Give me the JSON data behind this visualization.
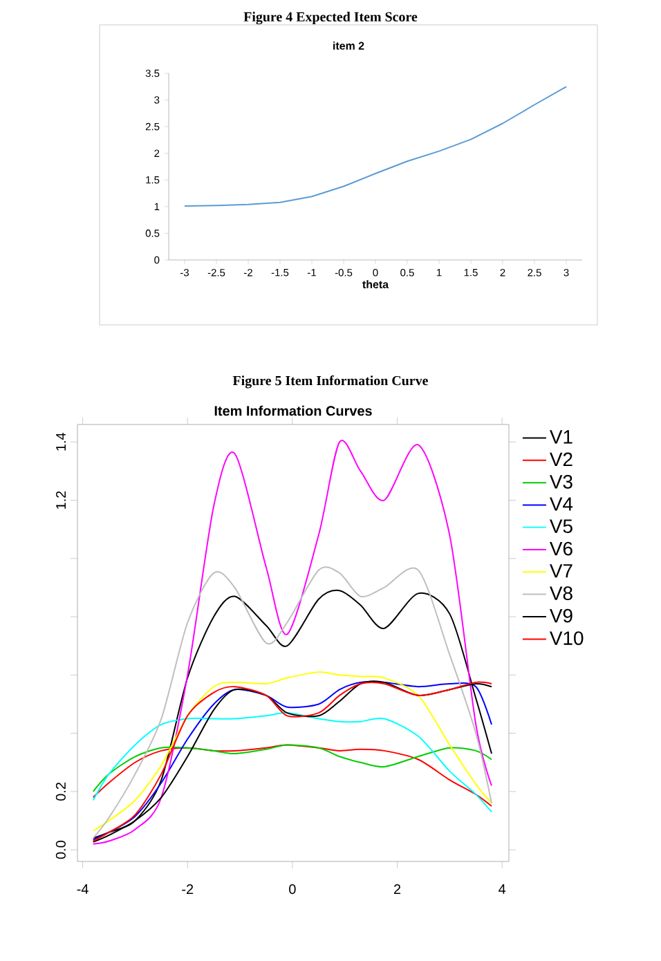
{
  "chart_data": [
    {
      "type": "line",
      "title": "Figure 4 Expected Item Score",
      "subtitle": "item 2",
      "xlabel": "theta",
      "categories": [
        "-3",
        "-2.5",
        "-2",
        "-1.5",
        "-1",
        "-0.5",
        "0",
        "0.5",
        "1",
        "1.5",
        "2",
        "2.5",
        "3"
      ],
      "values": [
        1.01,
        1.02,
        1.04,
        1.08,
        1.19,
        1.38,
        1.62,
        1.85,
        2.04,
        2.26,
        2.56,
        2.91,
        3.25
      ],
      "color": "#5b9bd5",
      "ylim": [
        0,
        3.5
      ],
      "yticks": [
        0,
        0.5,
        1,
        1.5,
        2,
        2.5,
        3,
        3.5
      ],
      "marker": "none"
    },
    {
      "type": "line",
      "title": "Figure 5 Item Information Curve",
      "subtitle": "Item Information Curves",
      "x": [
        -3.8,
        -3.5,
        -3,
        -2.5,
        -2,
        -1.5,
        -1.1,
        -0.5,
        -0.1,
        0.5,
        0.9,
        1.3,
        1.75,
        2.4,
        3,
        3.5,
        3.8
      ],
      "xlim": [
        -4.1,
        4.13
      ],
      "xticks": [
        -4,
        -2,
        0,
        2,
        4
      ],
      "ylim": [
        -0.04,
        1.46
      ],
      "yticks": [
        {
          "value": 0,
          "label": "0.0"
        },
        {
          "value": 0.2,
          "label": "0.2"
        },
        {
          "value": 0.4,
          "label": null
        },
        {
          "value": 0.6,
          "label": null
        },
        {
          "value": 0.8,
          "label": null
        },
        {
          "value": 1.0,
          "label": null
        },
        {
          "value": 1.2,
          "label": "1.2"
        },
        {
          "value": 1.4,
          "label": "1.4"
        }
      ],
      "legend": "top right",
      "marker": "none",
      "series": [
        {
          "name": "V1",
          "color": "#000000",
          "values": [
            0.04,
            0.06,
            0.1,
            0.24,
            0.59,
            0.8,
            0.87,
            0.77,
            0.7,
            0.86,
            0.89,
            0.84,
            0.76,
            0.88,
            0.81,
            0.52,
            0.33
          ]
        },
        {
          "name": "V2",
          "color": "#ff0000",
          "values": [
            0.18,
            0.23,
            0.3,
            0.34,
            0.35,
            0.34,
            0.34,
            0.35,
            0.36,
            0.35,
            0.34,
            0.345,
            0.34,
            0.31,
            0.24,
            0.19,
            0.15
          ]
        },
        {
          "name": "V3",
          "color": "#00cd00",
          "values": [
            0.2,
            0.26,
            0.32,
            0.35,
            0.35,
            0.34,
            0.33,
            0.345,
            0.36,
            0.35,
            0.32,
            0.3,
            0.285,
            0.32,
            0.35,
            0.34,
            0.31
          ]
        },
        {
          "name": "V4",
          "color": "#0000ff",
          "values": [
            0.035,
            0.06,
            0.115,
            0.23,
            0.38,
            0.5,
            0.55,
            0.53,
            0.49,
            0.5,
            0.55,
            0.575,
            0.575,
            0.56,
            0.57,
            0.56,
            0.43
          ]
        },
        {
          "name": "V5",
          "color": "#00ffff",
          "values": [
            0.17,
            0.26,
            0.36,
            0.43,
            0.45,
            0.45,
            0.45,
            0.46,
            0.47,
            0.45,
            0.44,
            0.44,
            0.45,
            0.39,
            0.27,
            0.19,
            0.13
          ]
        },
        {
          "name": "V6",
          "color": "#ff00ff",
          "values": [
            0.02,
            0.03,
            0.07,
            0.18,
            0.6,
            1.18,
            1.36,
            0.97,
            0.74,
            1.08,
            1.4,
            1.3,
            1.2,
            1.39,
            1.08,
            0.43,
            0.22
          ]
        },
        {
          "name": "V7",
          "color": "#ffff00",
          "values": [
            0.065,
            0.1,
            0.17,
            0.29,
            0.46,
            0.56,
            0.575,
            0.57,
            0.59,
            0.61,
            0.6,
            0.595,
            0.59,
            0.53,
            0.36,
            0.225,
            0.16
          ]
        },
        {
          "name": "V8",
          "color": "#bebebe",
          "values": [
            0.04,
            0.11,
            0.26,
            0.45,
            0.78,
            0.95,
            0.9,
            0.71,
            0.78,
            0.96,
            0.95,
            0.87,
            0.9,
            0.96,
            0.67,
            0.4,
            0.16
          ]
        },
        {
          "name": "V9",
          "color": "#000000",
          "values": [
            0.027,
            0.05,
            0.1,
            0.18,
            0.32,
            0.48,
            0.55,
            0.53,
            0.47,
            0.46,
            0.51,
            0.57,
            0.575,
            0.53,
            0.55,
            0.57,
            0.56
          ]
        },
        {
          "name": "V10",
          "color": "#ff0000",
          "values": [
            0.03,
            0.06,
            0.12,
            0.26,
            0.46,
            0.54,
            0.56,
            0.53,
            0.46,
            0.47,
            0.53,
            0.57,
            0.57,
            0.53,
            0.55,
            0.575,
            0.57
          ]
        }
      ]
    }
  ]
}
